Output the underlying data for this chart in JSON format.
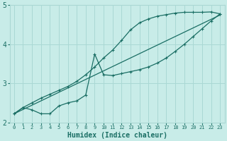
{
  "xlabel": "Humidex (Indice chaleur)",
  "ylabel": "",
  "background_color": "#c8ece8",
  "grid_color": "#aad8d4",
  "line_color": "#1a6e64",
  "xlim": [
    -0.5,
    23.5
  ],
  "ylim": [
    2.0,
    5.0
  ],
  "xticks": [
    0,
    1,
    2,
    3,
    4,
    5,
    6,
    7,
    8,
    9,
    10,
    11,
    12,
    13,
    14,
    15,
    16,
    17,
    18,
    19,
    20,
    21,
    22,
    23
  ],
  "yticks": [
    2,
    3,
    4,
    5
  ],
  "line1_x": [
    0,
    1,
    2,
    3,
    4,
    5,
    6,
    7,
    8,
    9,
    10,
    11,
    12,
    13,
    14,
    15,
    16,
    17,
    18,
    19,
    20,
    21,
    22,
    23
  ],
  "line1_y": [
    2.22,
    2.38,
    2.5,
    2.62,
    2.72,
    2.82,
    2.92,
    3.05,
    3.22,
    3.42,
    3.65,
    3.85,
    4.1,
    4.37,
    4.55,
    4.65,
    4.72,
    4.76,
    4.8,
    4.82,
    4.82,
    4.82,
    4.83,
    4.78
  ],
  "line2_x": [
    0,
    1,
    2,
    3,
    4,
    5,
    6,
    7,
    8,
    9,
    10,
    11,
    12,
    13,
    14,
    15,
    16,
    17,
    18,
    19,
    20,
    21,
    22,
    23
  ],
  "line2_y": [
    2.22,
    2.38,
    2.32,
    2.22,
    2.22,
    2.42,
    2.5,
    2.55,
    2.7,
    3.75,
    3.22,
    3.2,
    3.25,
    3.3,
    3.35,
    3.42,
    3.52,
    3.65,
    3.82,
    4.0,
    4.2,
    4.4,
    4.6,
    4.78
  ],
  "line3_x": [
    0,
    23
  ],
  "line3_y": [
    2.22,
    4.75
  ]
}
